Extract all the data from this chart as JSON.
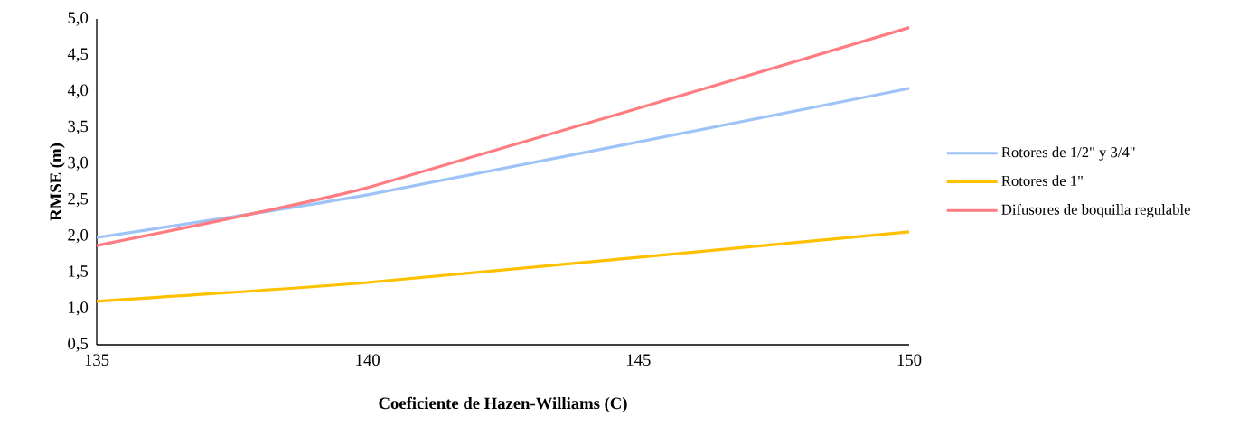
{
  "chart_data": {
    "type": "line",
    "xlabel": "Coeficiente de Hazen-Williams (C)",
    "ylabel": "RMSE (m)",
    "x": [
      135,
      140,
      150
    ],
    "series": [
      {
        "name": "Rotores de 1/2\" y 3/4\"",
        "color": "#9dc3f7",
        "values": [
          1.98,
          2.57,
          4.04
        ]
      },
      {
        "name": "Rotores de 1\"",
        "color": "#ffc000",
        "values": [
          1.1,
          1.36,
          2.06
        ]
      },
      {
        "name": "Difusores de boquilla regulable",
        "color": "#ff7c80",
        "values": [
          1.87,
          2.67,
          4.88
        ]
      }
    ],
    "xlim": [
      135,
      150
    ],
    "xticks": [
      135,
      140,
      145,
      150
    ],
    "ylim": [
      0.5,
      5.0
    ],
    "yticks": [
      {
        "value": 0.5,
        "label": "0,5"
      },
      {
        "value": 1.0,
        "label": "1,0"
      },
      {
        "value": 1.5,
        "label": "1,5"
      },
      {
        "value": 2.0,
        "label": "2,0"
      },
      {
        "value": 2.5,
        "label": "2,5"
      },
      {
        "value": 3.0,
        "label": "3,0"
      },
      {
        "value": 3.5,
        "label": "3,5"
      },
      {
        "value": 4.0,
        "label": "4,0"
      },
      {
        "value": 4.5,
        "label": "4,5"
      },
      {
        "value": 5.0,
        "label": "5,0"
      }
    ],
    "grid": false,
    "legend": "right",
    "line_style": "solid",
    "marker": "none"
  }
}
